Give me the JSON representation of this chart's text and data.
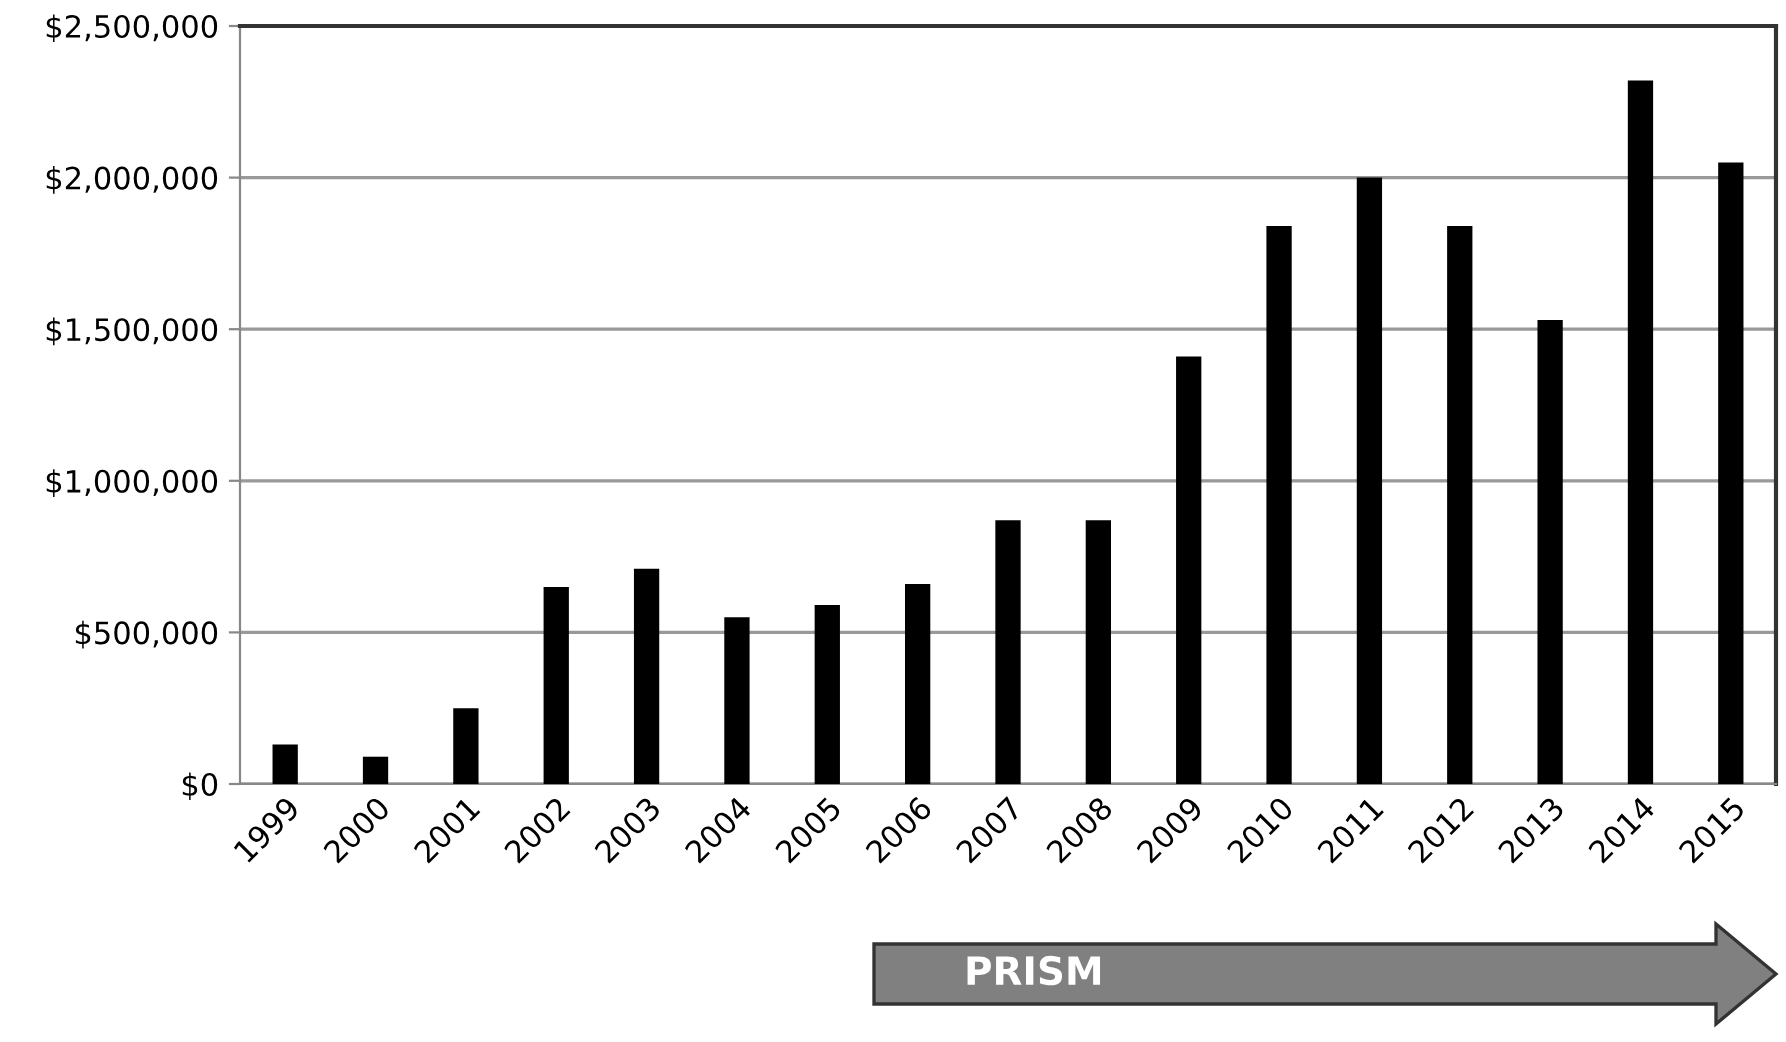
{
  "chart_data": {
    "type": "bar",
    "categories": [
      "1999",
      "2000",
      "2001",
      "2002",
      "2003",
      "2004",
      "2005",
      "2006",
      "2007",
      "2008",
      "2009",
      "2010",
      "2011",
      "2012",
      "2013",
      "2014",
      "2015"
    ],
    "values": [
      130000,
      90000,
      250000,
      650000,
      710000,
      550000,
      590000,
      660000,
      870000,
      870000,
      1410000,
      1840000,
      2000000,
      1840000,
      1530000,
      2320000,
      2050000
    ],
    "color": "#000000",
    "ylim": [
      0,
      2500000
    ],
    "yticks": [
      {
        "value": 0,
        "label": "$0"
      },
      {
        "value": 500000,
        "label": "$500,000"
      },
      {
        "value": 1000000,
        "label": "$1,000,000"
      },
      {
        "value": 1500000,
        "label": "$1,500,000"
      },
      {
        "value": 2000000,
        "label": "$2,000,000"
      },
      {
        "value": 2500000,
        "label": "$2,500,000"
      }
    ],
    "grid": "y",
    "annotations": [
      "PRISM"
    ]
  }
}
